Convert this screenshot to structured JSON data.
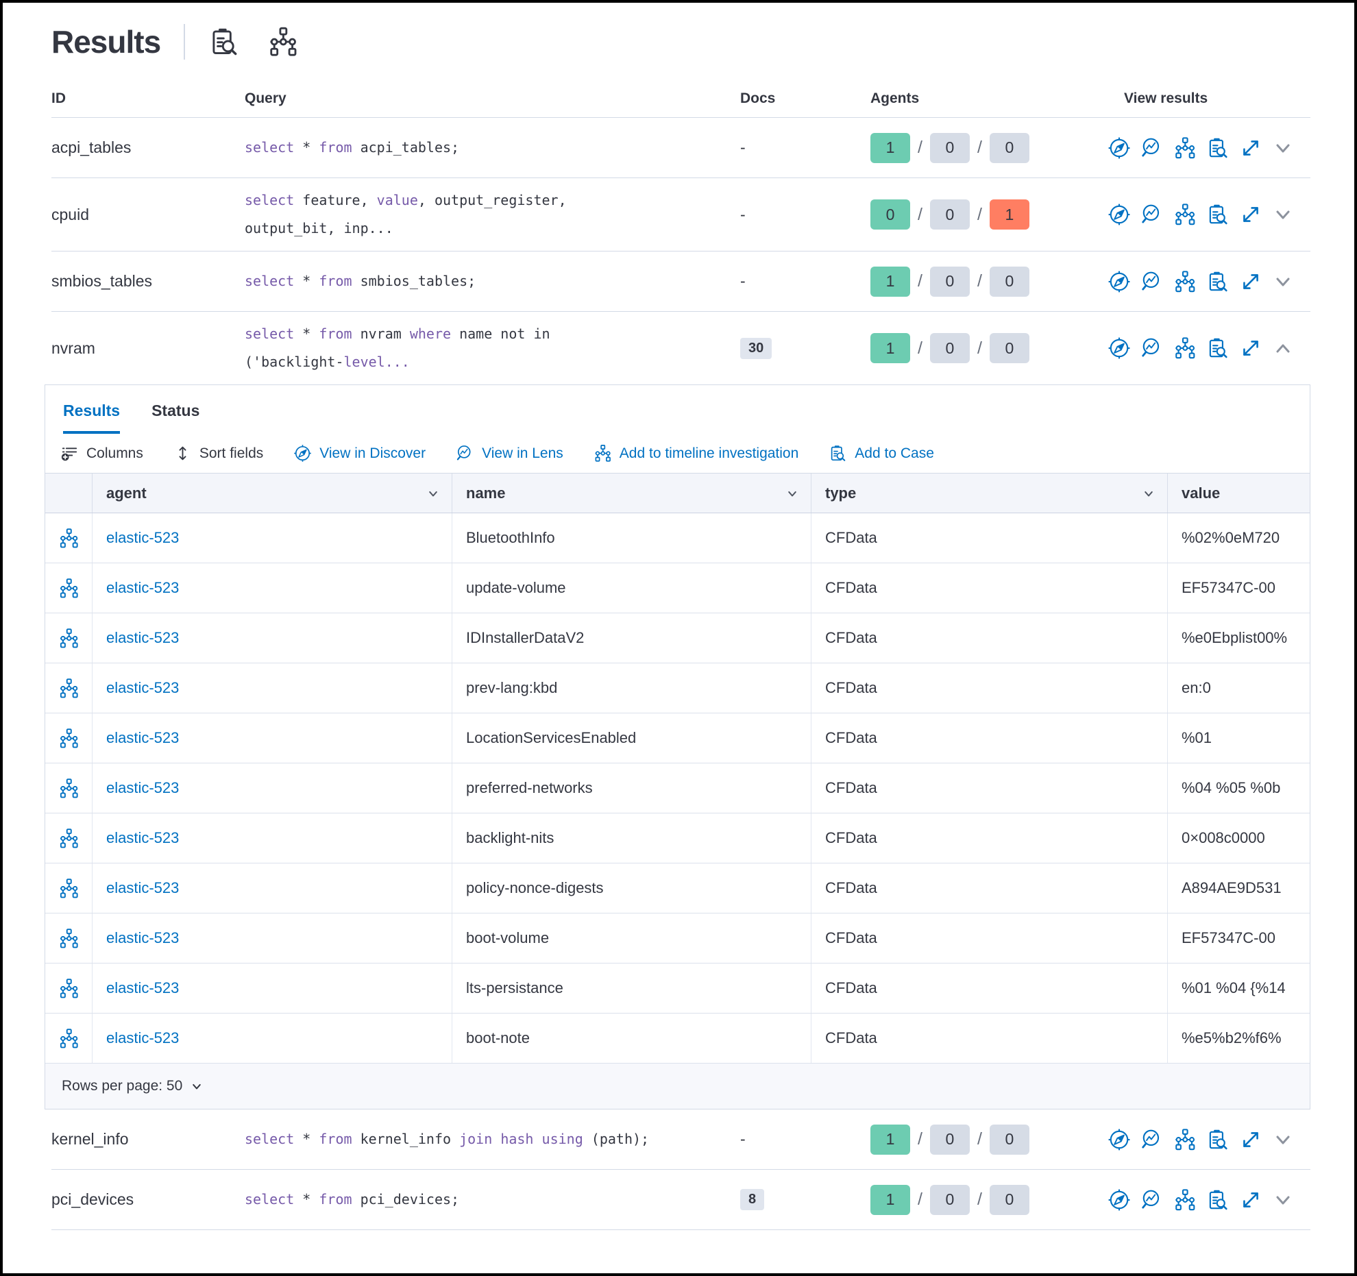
{
  "colors": {
    "primary": "#0071c2",
    "text": "#343741",
    "keyword": "#765aa9",
    "border": "#d3dae6",
    "badge_green": "#6dccb1",
    "badge_gray": "#d6dce6",
    "badge_red": "#ff7e62"
  },
  "header": {
    "title": "Results"
  },
  "outer_table": {
    "columns": [
      "ID",
      "Query",
      "Docs",
      "Agents",
      "View results"
    ],
    "agents_separator": "/",
    "rows": [
      {
        "id": "acpi_tables",
        "query": [
          [
            {
              "t": "select",
              "k": 1
            },
            {
              "t": " * ",
              "k": 0
            },
            {
              "t": "from",
              "k": 1
            },
            {
              "t": " acpi_tables;",
              "k": 0
            }
          ]
        ],
        "docs": "-",
        "agents": [
          "1",
          "0",
          "0"
        ],
        "agents_status": [
          "green",
          "gray",
          "gray"
        ],
        "expanded": false
      },
      {
        "id": "cpuid",
        "query": [
          [
            {
              "t": "select",
              "k": 1
            },
            {
              "t": " feature, ",
              "k": 0
            },
            {
              "t": "value",
              "k": 1
            },
            {
              "t": ", output_register,",
              "k": 0
            }
          ],
          [
            {
              "t": "output_bit, inp...",
              "k": 0
            }
          ]
        ],
        "docs": "-",
        "agents": [
          "0",
          "0",
          "1"
        ],
        "agents_status": [
          "green",
          "gray",
          "red"
        ],
        "expanded": false
      },
      {
        "id": "smbios_tables",
        "query": [
          [
            {
              "t": "select",
              "k": 1
            },
            {
              "t": " * ",
              "k": 0
            },
            {
              "t": "from",
              "k": 1
            },
            {
              "t": " smbios_tables;",
              "k": 0
            }
          ]
        ],
        "docs": "-",
        "agents": [
          "1",
          "0",
          "0"
        ],
        "agents_status": [
          "green",
          "gray",
          "gray"
        ],
        "expanded": false
      },
      {
        "id": "nvram",
        "query": [
          [
            {
              "t": "select",
              "k": 1
            },
            {
              "t": " * ",
              "k": 0
            },
            {
              "t": "from",
              "k": 1
            },
            {
              "t": " nvram ",
              "k": 0
            },
            {
              "t": "where",
              "k": 1
            },
            {
              "t": " name not in",
              "k": 0
            }
          ],
          [
            {
              "t": "('backlight-",
              "k": 0
            },
            {
              "t": "level...",
              "k": 1
            }
          ]
        ],
        "docs": "30",
        "agents": [
          "1",
          "0",
          "0"
        ],
        "agents_status": [
          "green",
          "gray",
          "gray"
        ],
        "expanded": true
      },
      {
        "id": "kernel_info",
        "query": [
          [
            {
              "t": "select",
              "k": 1
            },
            {
              "t": " * ",
              "k": 0
            },
            {
              "t": "from",
              "k": 1
            },
            {
              "t": " kernel_info ",
              "k": 0
            },
            {
              "t": "join",
              "k": 1
            },
            {
              "t": " ",
              "k": 0
            },
            {
              "t": "hash",
              "k": 1
            },
            {
              "t": " ",
              "k": 0
            },
            {
              "t": "using",
              "k": 1
            },
            {
              "t": " (path);",
              "k": 0
            }
          ]
        ],
        "docs": "-",
        "agents": [
          "1",
          "0",
          "0"
        ],
        "agents_status": [
          "green",
          "gray",
          "gray"
        ],
        "expanded": false
      },
      {
        "id": "pci_devices",
        "query": [
          [
            {
              "t": "select",
              "k": 1
            },
            {
              "t": " * ",
              "k": 0
            },
            {
              "t": "from",
              "k": 1
            },
            {
              "t": " pci_devices;",
              "k": 0
            }
          ]
        ],
        "docs": "8",
        "agents": [
          "1",
          "0",
          "0"
        ],
        "agents_status": [
          "green",
          "gray",
          "gray"
        ],
        "expanded": false
      }
    ]
  },
  "panel": {
    "tabs": [
      {
        "label": "Results",
        "active": true
      },
      {
        "label": "Status",
        "active": false
      }
    ],
    "toolbar": [
      {
        "label": "Columns",
        "style": "plain",
        "icon": "columns-icon"
      },
      {
        "label": "Sort fields",
        "style": "plain",
        "icon": "sort-icon"
      },
      {
        "label": "View in Discover",
        "style": "link",
        "icon": "discover-icon"
      },
      {
        "label": "View in Lens",
        "style": "link",
        "icon": "lens-icon"
      },
      {
        "label": "Add to timeline investigation",
        "style": "link",
        "icon": "timeline-icon"
      },
      {
        "label": "Add to Case",
        "style": "link",
        "icon": "case-icon"
      }
    ],
    "inner_table": {
      "columns": [
        {
          "label": "agent"
        },
        {
          "label": "name"
        },
        {
          "label": "type"
        },
        {
          "label": "value"
        }
      ],
      "rows": [
        {
          "agent": "elastic-523",
          "name": "BluetoothInfo",
          "type": "CFData",
          "value": "%02%0eM720"
        },
        {
          "agent": "elastic-523",
          "name": "update-volume",
          "type": "CFData",
          "value": "EF57347C-00"
        },
        {
          "agent": "elastic-523",
          "name": "IDInstallerDataV2",
          "type": "CFData",
          "value": "%e0Ebplist00%"
        },
        {
          "agent": "elastic-523",
          "name": "prev-lang:kbd",
          "type": "CFData",
          "value": "en:0"
        },
        {
          "agent": "elastic-523",
          "name": "LocationServicesEnabled",
          "type": "CFData",
          "value": "%01"
        },
        {
          "agent": "elastic-523",
          "name": "preferred-networks",
          "type": "CFData",
          "value": "%04 %05 %0b"
        },
        {
          "agent": "elastic-523",
          "name": "backlight-nits",
          "type": "CFData",
          "value": "0×008c0000"
        },
        {
          "agent": "elastic-523",
          "name": "policy-nonce-digests",
          "type": "CFData",
          "value": "A894AE9D531"
        },
        {
          "agent": "elastic-523",
          "name": "boot-volume",
          "type": "CFData",
          "value": "EF57347C-00"
        },
        {
          "agent": "elastic-523",
          "name": "lts-persistance",
          "type": "CFData",
          "value": "%01 %04 {%14"
        },
        {
          "agent": "elastic-523",
          "name": "boot-note",
          "type": "CFData",
          "value": "%e5%b2%f6%"
        }
      ]
    },
    "footer": {
      "rows_per_page_label": "Rows per page: 50"
    }
  }
}
